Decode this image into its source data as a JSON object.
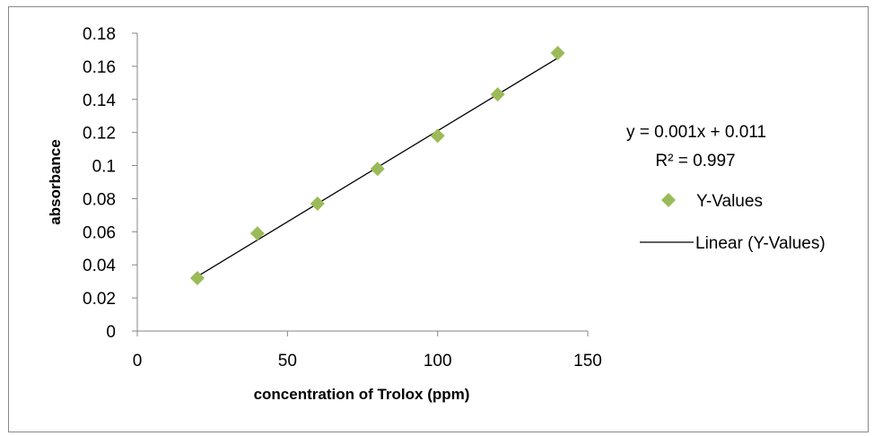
{
  "chart_data": {
    "type": "scatter",
    "title": "",
    "xlabel": "concentration of Trolox (ppm)",
    "ylabel": "absorbance",
    "xlim": [
      0,
      150
    ],
    "ylim": [
      0,
      0.18
    ],
    "x_ticks": [
      "0",
      "50",
      "100",
      "150"
    ],
    "y_ticks": [
      "0",
      "0.02",
      "0.04",
      "0.06",
      "0.08",
      "0.1",
      "0.12",
      "0.14",
      "0.16",
      "0.18"
    ],
    "grid": false,
    "legend_position": "right",
    "series": [
      {
        "name": "Y-Values",
        "marker": "diamond",
        "color": "#9bbb59",
        "x": [
          20,
          40,
          60,
          80,
          100,
          120,
          140
        ],
        "y": [
          0.032,
          0.059,
          0.077,
          0.098,
          0.118,
          0.143,
          0.168
        ]
      }
    ],
    "trendline": {
      "name": "Linear (Y-Values)",
      "type": "linear",
      "color": "#000000",
      "x": [
        20,
        140
      ],
      "y": [
        0.033,
        0.165
      ],
      "equation": "y = 0.001x + 0.011",
      "r_squared": "R² = 0.997"
    }
  }
}
